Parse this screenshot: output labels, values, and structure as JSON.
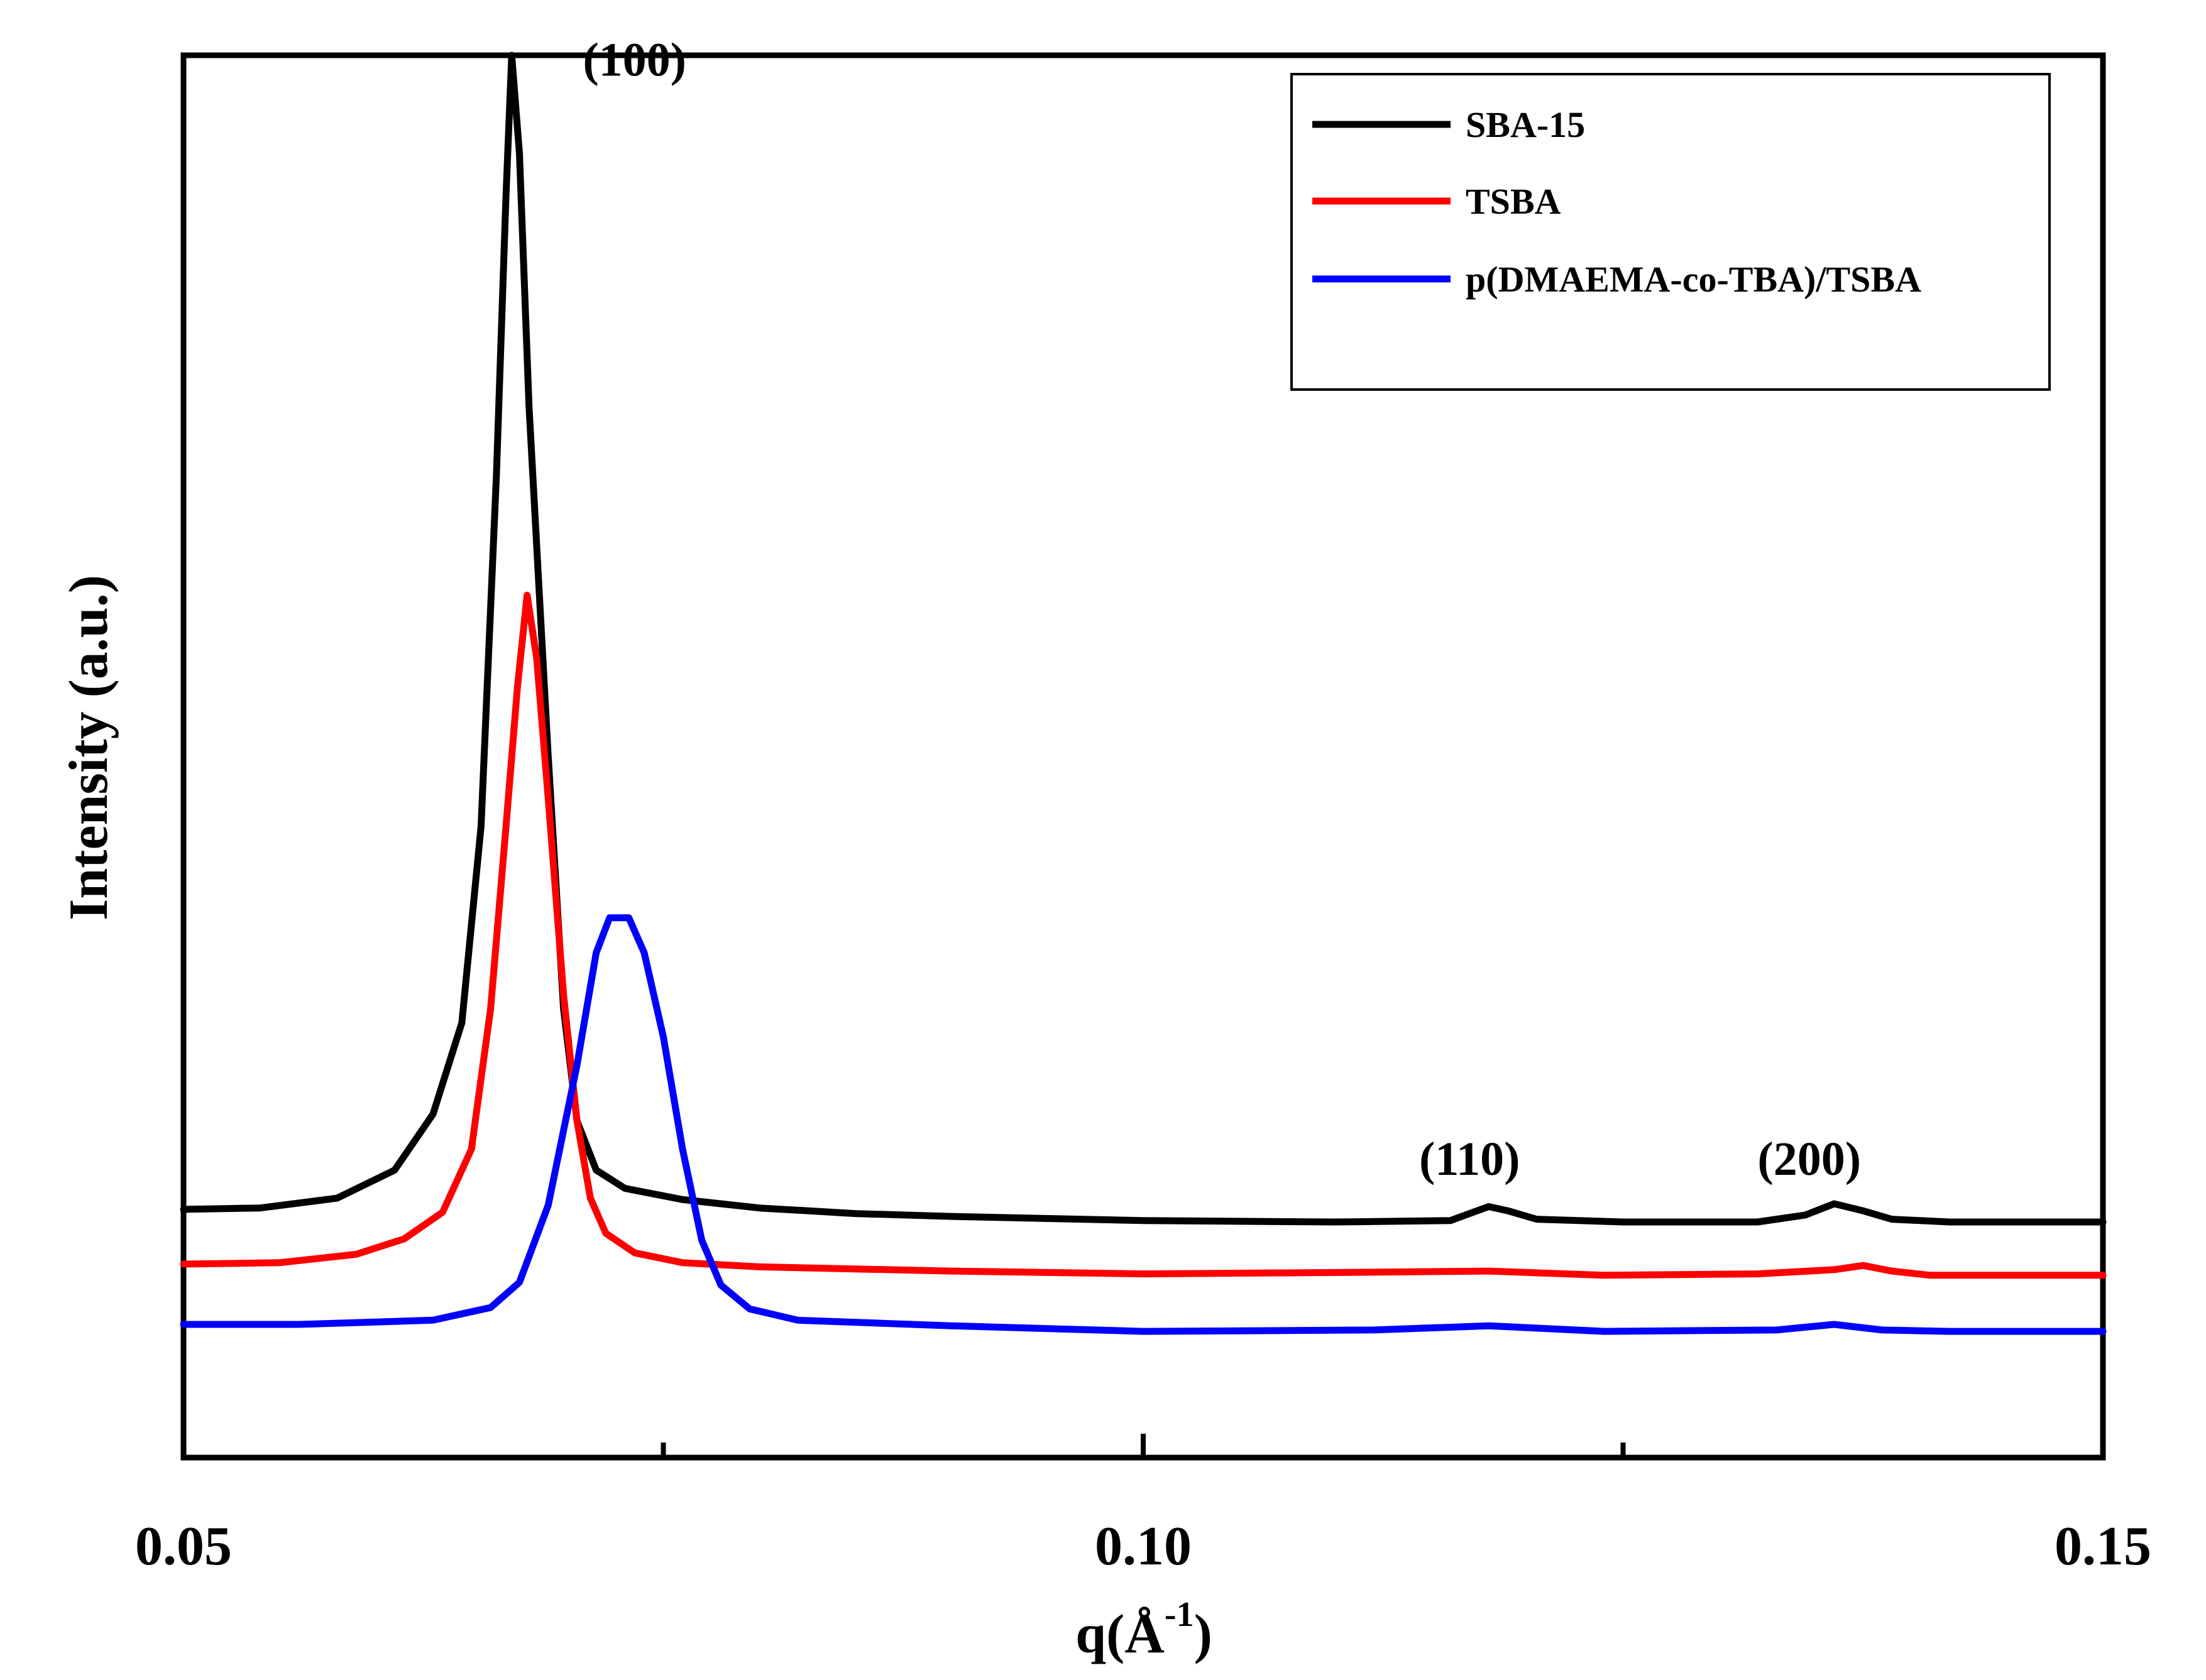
{
  "chart_data": {
    "type": "line",
    "title": "",
    "xlabel_prefix": "q(",
    "xlabel_unit": "Å",
    "xlabel_exp": "-1",
    "xlabel_suffix": ")",
    "ylabel": "Intensity (a.u.)",
    "xlim": [
      0.05,
      0.15
    ],
    "ylim": [
      0,
      100
    ],
    "x_ticks": [
      {
        "value": 0.05,
        "label": "0.05"
      },
      {
        "value": 0.1,
        "label": "0.10"
      },
      {
        "value": 0.15,
        "label": "0.15"
      }
    ],
    "x_minor_ticks": [
      0.075,
      0.125
    ],
    "grid": false,
    "legend_position": "top-right",
    "series": [
      {
        "name": "SBA-15",
        "color": "#000000",
        "points": [
          [
            0.05,
            17.7
          ],
          [
            0.054,
            17.8
          ],
          [
            0.058,
            18.5
          ],
          [
            0.061,
            20.5
          ],
          [
            0.063,
            24.5
          ],
          [
            0.0645,
            31
          ],
          [
            0.0655,
            45
          ],
          [
            0.0663,
            70
          ],
          [
            0.0668,
            90
          ],
          [
            0.0671,
            100
          ],
          [
            0.0675,
            93
          ],
          [
            0.068,
            75
          ],
          [
            0.069,
            50
          ],
          [
            0.0698,
            32
          ],
          [
            0.0705,
            24
          ],
          [
            0.0715,
            20.5
          ],
          [
            0.073,
            19.2
          ],
          [
            0.076,
            18.4
          ],
          [
            0.08,
            17.8
          ],
          [
            0.085,
            17.4
          ],
          [
            0.09,
            17.2
          ],
          [
            0.1,
            16.9
          ],
          [
            0.11,
            16.8
          ],
          [
            0.116,
            16.9
          ],
          [
            0.117,
            17.4
          ],
          [
            0.118,
            17.9
          ],
          [
            0.119,
            17.6
          ],
          [
            0.1205,
            17.0
          ],
          [
            0.125,
            16.8
          ],
          [
            0.132,
            16.8
          ],
          [
            0.1345,
            17.3
          ],
          [
            0.136,
            18.1
          ],
          [
            0.1375,
            17.6
          ],
          [
            0.139,
            17.0
          ],
          [
            0.142,
            16.8
          ],
          [
            0.15,
            16.8
          ]
        ]
      },
      {
        "name": "TSBA",
        "color": "#ff0000",
        "points": [
          [
            0.05,
            13.8
          ],
          [
            0.055,
            13.9
          ],
          [
            0.059,
            14.5
          ],
          [
            0.0615,
            15.6
          ],
          [
            0.0635,
            17.5
          ],
          [
            0.065,
            22
          ],
          [
            0.066,
            32
          ],
          [
            0.0668,
            45
          ],
          [
            0.0674,
            55
          ],
          [
            0.0679,
            61.5
          ],
          [
            0.0684,
            57
          ],
          [
            0.069,
            47
          ],
          [
            0.0698,
            33
          ],
          [
            0.0705,
            24
          ],
          [
            0.0712,
            18.5
          ],
          [
            0.072,
            16
          ],
          [
            0.0735,
            14.6
          ],
          [
            0.076,
            13.9
          ],
          [
            0.08,
            13.6
          ],
          [
            0.09,
            13.3
          ],
          [
            0.1,
            13.1
          ],
          [
            0.11,
            13.2
          ],
          [
            0.118,
            13.3
          ],
          [
            0.124,
            13.0
          ],
          [
            0.132,
            13.1
          ],
          [
            0.136,
            13.4
          ],
          [
            0.1375,
            13.7
          ],
          [
            0.139,
            13.3
          ],
          [
            0.141,
            13.0
          ],
          [
            0.15,
            13.0
          ]
        ]
      },
      {
        "name": "p(DMAEMA-co-TBA)/TSBA",
        "color": "#0000ff",
        "points": [
          [
            0.05,
            9.5
          ],
          [
            0.056,
            9.5
          ],
          [
            0.063,
            9.8
          ],
          [
            0.066,
            10.7
          ],
          [
            0.0675,
            12.5
          ],
          [
            0.069,
            18
          ],
          [
            0.0705,
            28
          ],
          [
            0.0715,
            36
          ],
          [
            0.0722,
            38.5
          ],
          [
            0.0732,
            38.5
          ],
          [
            0.074,
            36
          ],
          [
            0.075,
            30
          ],
          [
            0.076,
            22
          ],
          [
            0.077,
            15.5
          ],
          [
            0.078,
            12.3
          ],
          [
            0.0795,
            10.6
          ],
          [
            0.082,
            9.8
          ],
          [
            0.09,
            9.4
          ],
          [
            0.1,
            9.0
          ],
          [
            0.112,
            9.1
          ],
          [
            0.118,
            9.4
          ],
          [
            0.124,
            9.0
          ],
          [
            0.133,
            9.1
          ],
          [
            0.136,
            9.5
          ],
          [
            0.1385,
            9.1
          ],
          [
            0.142,
            9.0
          ],
          [
            0.15,
            9.0
          ]
        ]
      }
    ],
    "annotations": [
      {
        "text": "(100)",
        "x": 0.0735,
        "y": 99
      },
      {
        "text": "(110)",
        "x": 0.117,
        "y": 20.6
      },
      {
        "text": "(200)",
        "x": 0.1347,
        "y": 20.6
      }
    ]
  }
}
